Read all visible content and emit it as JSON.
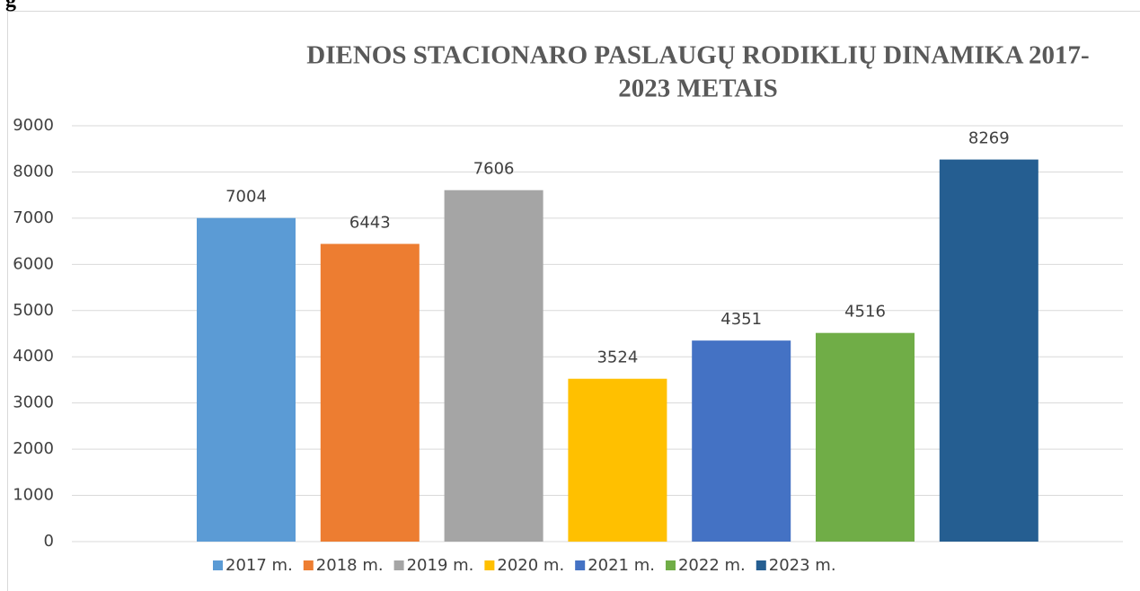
{
  "page_label": "g",
  "chart_data": {
    "type": "bar",
    "title": [
      "DIENOS STACIONARO  PASLAUGŲ RODIKLIŲ DINAMIKA  2017-",
      "2023 METAIS"
    ],
    "series": [
      {
        "name": "2017 m.",
        "color": "#5b9bd5",
        "values": [
          7004
        ]
      },
      {
        "name": "2018 m.",
        "color": "#ed7d31",
        "values": [
          6443
        ]
      },
      {
        "name": "2019 m.",
        "color": "#a5a5a5",
        "values": [
          7606
        ]
      },
      {
        "name": "2020 m.",
        "color": "#ffc000",
        "values": [
          3524
        ]
      },
      {
        "name": "2021 m.",
        "color": "#4472c4",
        "values": [
          4351
        ]
      },
      {
        "name": "2022 m.",
        "color": "#70ad47",
        "values": [
          4516
        ]
      },
      {
        "name": "2023 m.",
        "color": "#255e91",
        "values": [
          8269
        ]
      }
    ],
    "ylim": [
      0,
      9000
    ],
    "yticks": [
      0,
      1000,
      2000,
      3000,
      4000,
      5000,
      6000,
      7000,
      8000,
      9000
    ],
    "grid": true,
    "data_labels": true,
    "legend": "bottom"
  }
}
